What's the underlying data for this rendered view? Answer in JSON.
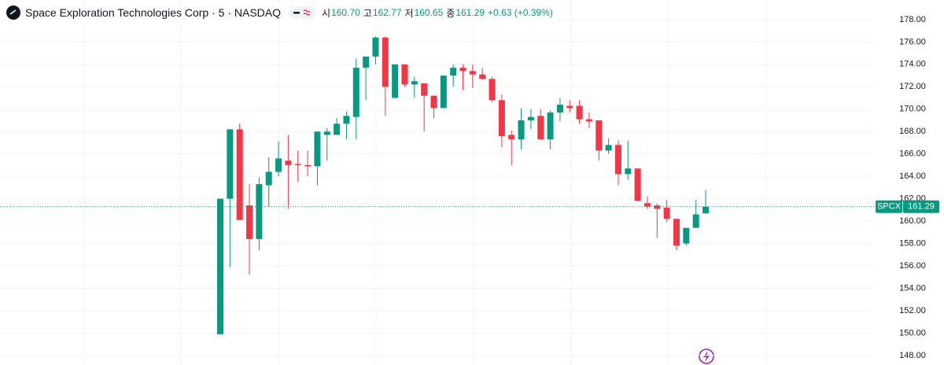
{
  "header": {
    "title": "Space Exploration Technologies Corp · 5 · NASDAQ",
    "open_label": "시",
    "open": "160.70",
    "high_label": "고",
    "high": "162.77",
    "low_label": "저",
    "low": "160.65",
    "close_label": "종",
    "close": "161.29",
    "change": "+0.63 (+0.39%)"
  },
  "chart_data": {
    "type": "candlestick",
    "symbol": "SPCX",
    "up_color": "#089981",
    "down_color": "#f23645",
    "open": [
      149.9,
      162.0,
      168.2,
      161.4,
      158.4,
      163.2,
      164.4,
      165.4,
      165.1,
      165.0,
      164.9,
      167.7,
      167.7,
      168.7,
      169.3,
      173.7,
      174.7,
      176.4,
      171.0,
      174.0,
      172.2,
      172.3,
      171.2,
      170.1,
      173.0,
      173.7,
      173.4,
      173.1,
      172.7,
      170.8,
      167.7,
      167.3,
      169.0,
      169.4,
      167.3,
      169.7,
      170.3,
      170.3,
      169.1,
      169.0,
      166.3,
      166.8,
      164.2,
      164.7,
      161.6,
      161.4,
      161.2,
      160.2,
      158.0,
      159.4,
      160.7
    ],
    "high": [
      162.0,
      168.2,
      168.7,
      163.3,
      163.9,
      165.7,
      167.1,
      167.7,
      166.3,
      166.3,
      168.0,
      168.3,
      169.2,
      169.8,
      174.5,
      174.7,
      176.5,
      176.5,
      174.0,
      174.0,
      172.9,
      172.3,
      171.2,
      173.0,
      174.0,
      174.0,
      174.0,
      173.7,
      172.9,
      171.3,
      168.1,
      170.1,
      170.0,
      170.0,
      169.9,
      171.0,
      170.8,
      170.8,
      169.7,
      169.0,
      167.4,
      167.2,
      167.2,
      164.7,
      162.2,
      161.6,
      161.9,
      160.2,
      159.4,
      161.9,
      162.77
    ],
    "low": [
      149.9,
      155.9,
      160.1,
      155.2,
      157.4,
      161.3,
      164.0,
      161.1,
      163.5,
      164.0,
      163.2,
      165.4,
      167.7,
      167.3,
      167.3,
      170.8,
      174.0,
      169.4,
      171.0,
      172.0,
      171.0,
      168.0,
      169.2,
      170.1,
      172.0,
      171.7,
      171.9,
      172.6,
      170.6,
      166.6,
      165.0,
      166.4,
      168.2,
      167.3,
      166.4,
      168.9,
      169.7,
      168.7,
      168.3,
      165.4,
      166.0,
      163.2,
      163.7,
      161.8,
      161.1,
      158.5,
      159.9,
      157.4,
      157.8,
      159.4,
      160.65
    ],
    "close": [
      162.0,
      168.2,
      160.1,
      158.4,
      163.3,
      164.4,
      165.6,
      165.0,
      165.0,
      164.9,
      168.0,
      168.0,
      168.7,
      169.4,
      173.7,
      174.7,
      176.4,
      172.0,
      174.0,
      172.2,
      172.5,
      171.2,
      170.1,
      173.0,
      173.7,
      173.4,
      173.1,
      172.7,
      170.8,
      167.6,
      167.3,
      169.0,
      169.3,
      167.3,
      169.7,
      170.4,
      170.1,
      169.1,
      168.9,
      166.3,
      166.8,
      164.2,
      164.7,
      161.8,
      161.3,
      161.1,
      160.2,
      157.8,
      159.4,
      160.6,
      161.29
    ],
    "ylim": [
      147.15,
      179.75
    ],
    "yticks": [
      {
        "value": 148,
        "label": "148.00"
      },
      {
        "value": 150,
        "label": "150.00"
      },
      {
        "value": 152,
        "label": "152.00"
      },
      {
        "value": 154,
        "label": "154.00"
      },
      {
        "value": 156,
        "label": "156.00"
      },
      {
        "value": 158,
        "label": "158.00"
      },
      {
        "value": 160,
        "label": "160.00"
      },
      {
        "value": 162,
        "label": "162.00"
      },
      {
        "value": 164,
        "label": "164.00"
      },
      {
        "value": 166,
        "label": "166.00"
      },
      {
        "value": 168,
        "label": "168.00"
      },
      {
        "value": 170,
        "label": "170.00"
      },
      {
        "value": 172,
        "label": "172.00"
      },
      {
        "value": 174,
        "label": "174.00"
      },
      {
        "value": 176,
        "label": "176.00"
      },
      {
        "value": 178,
        "label": "178.00"
      }
    ],
    "grid": true
  }
}
